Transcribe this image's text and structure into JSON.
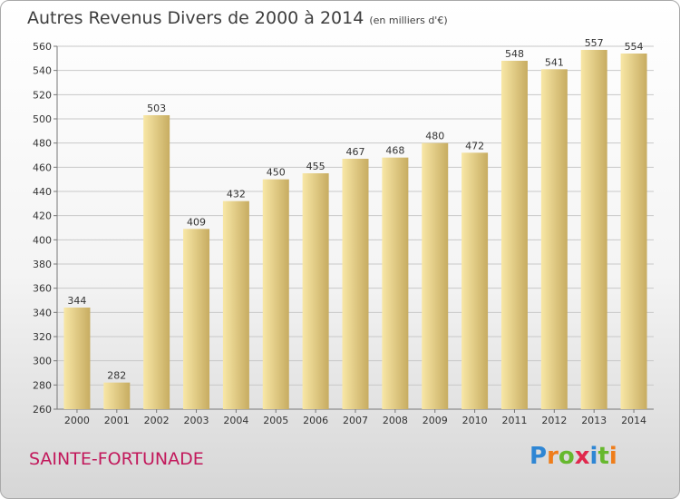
{
  "title": "Autres Revenus Divers de 2000 à 2014",
  "subtitle": "(en milliers d'€)",
  "commune": "SAINTE-FORTUNADE",
  "logo": {
    "text": "Proxiti",
    "colors": [
      "#2e86d4",
      "#ef7d1a",
      "#66b82e",
      "#e0284d",
      "#2e86d4",
      "#66b82e",
      "#ef7d1a"
    ]
  },
  "colors": {
    "bar_light": "#f8e7a6",
    "bar_dark": "#c7ac61",
    "grid": "#c8c8c8",
    "axis": "#777777"
  },
  "chart_data": {
    "type": "bar",
    "title": "Autres Revenus Divers de 2000 à 2014",
    "categories": [
      "2000",
      "2001",
      "2002",
      "2003",
      "2004",
      "2005",
      "2006",
      "2007",
      "2008",
      "2009",
      "2010",
      "2011",
      "2012",
      "2013",
      "2014"
    ],
    "values": [
      344,
      282,
      503,
      409,
      432,
      450,
      455,
      467,
      468,
      480,
      472,
      548,
      541,
      557,
      554
    ],
    "ylim": [
      260,
      560
    ],
    "yticks": [
      260,
      280,
      300,
      320,
      340,
      360,
      380,
      400,
      420,
      440,
      460,
      480,
      500,
      520,
      540,
      560
    ],
    "grid": true,
    "xlabel": "",
    "ylabel": ""
  }
}
